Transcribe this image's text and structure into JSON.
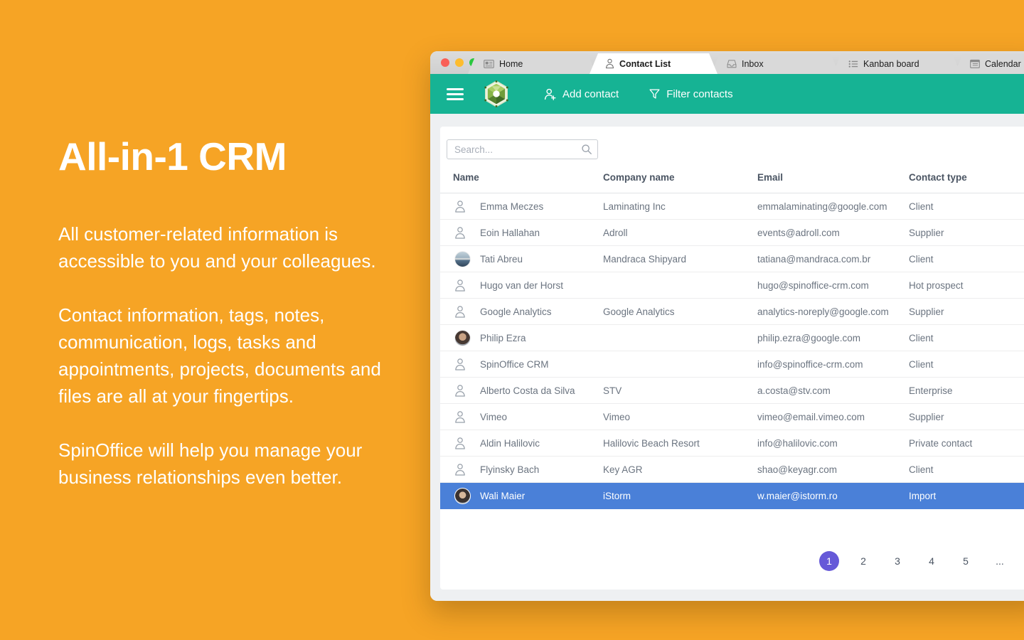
{
  "hero": {
    "title": "All-in-1 CRM",
    "paragraphs": [
      "All customer-related information is accessible to you and your colleagues.",
      "Contact information, tags, notes, communication, logs, tasks and appointments, projects, documents and files are all at your fingertips.",
      "SpinOffice will help you manage your business relationships even better."
    ]
  },
  "colors": {
    "background_orange": "#f6a425",
    "toolbar_teal": "#16b394",
    "selected_row_blue": "#4a80d8",
    "pagination_active_purple": "#6659d8",
    "traffic_red": "#f95f57",
    "traffic_yellow": "#fdbc2e",
    "traffic_green": "#2ac73f"
  },
  "window": {
    "tabs": [
      {
        "label": "Home",
        "icon": "article-icon",
        "active": false
      },
      {
        "label": "Contact List",
        "icon": "person-icon",
        "active": true
      },
      {
        "label": "Inbox",
        "icon": "inbox-icon",
        "active": false
      },
      {
        "label": "Kanban board",
        "icon": "kanban-list-icon",
        "active": false
      },
      {
        "label": "Calendar",
        "icon": "calendar-icon",
        "active": false
      }
    ],
    "toolbar": {
      "add_contact_label": "Add contact",
      "filter_label": "Filter contacts"
    },
    "search": {
      "placeholder": "Search..."
    },
    "table": {
      "columns": [
        "Name",
        "Company name",
        "Email",
        "Contact type"
      ],
      "rows": [
        {
          "avatar": "person-icon",
          "name": "Emma Meczes",
          "company": "Laminating Inc",
          "email": "emmalaminating@google.com",
          "type": "Client",
          "selected": false
        },
        {
          "avatar": "person-icon",
          "name": "Eoin Hallahan",
          "company": "Adroll",
          "email": "events@adroll.com",
          "type": "Supplier",
          "selected": false
        },
        {
          "avatar": "photo-ship",
          "name": "Tati Abreu",
          "company": "Mandraca Shipyard",
          "email": "tatiana@mandraca.com.br",
          "type": "Client",
          "selected": false
        },
        {
          "avatar": "person-icon",
          "name": "Hugo van der Horst",
          "company": "",
          "email": "hugo@spinoffice-crm.com",
          "type": "Hot prospect",
          "selected": false
        },
        {
          "avatar": "person-icon",
          "name": "Google Analytics",
          "company": "Google Analytics",
          "email": "analytics-noreply@google.com",
          "type": "Supplier",
          "selected": false
        },
        {
          "avatar": "photo-portrait-1",
          "name": "Philip Ezra",
          "company": "",
          "email": "philip.ezra@google.com",
          "type": "Client",
          "selected": false
        },
        {
          "avatar": "person-icon",
          "name": "SpinOffice CRM",
          "company": "",
          "email": "info@spinoffice-crm.com",
          "type": "Client",
          "selected": false
        },
        {
          "avatar": "person-icon",
          "name": "Alberto Costa da Silva",
          "company": "STV",
          "email": "a.costa@stv.com",
          "type": "Enterprise",
          "selected": false
        },
        {
          "avatar": "person-icon",
          "name": "Vimeo",
          "company": "Vimeo",
          "email": "vimeo@email.vimeo.com",
          "type": "Supplier",
          "selected": false
        },
        {
          "avatar": "person-icon",
          "name": "Aldin Halilovic",
          "company": "Halilovic Beach Resort",
          "email": "info@halilovic.com",
          "type": "Private contact",
          "selected": false
        },
        {
          "avatar": "person-icon",
          "name": "Flyinsky Bach",
          "company": "Key AGR",
          "email": "shao@keyagr.com",
          "type": "Client",
          "selected": false
        },
        {
          "avatar": "photo-portrait-2",
          "name": "Wali Maier",
          "company": "iStorm",
          "email": "w.maier@istorm.ro",
          "type": "Import",
          "selected": true
        }
      ]
    },
    "pagination": {
      "pages": [
        {
          "label": "1",
          "active": true
        },
        {
          "label": "2",
          "active": false
        },
        {
          "label": "3",
          "active": false
        },
        {
          "label": "4",
          "active": false
        },
        {
          "label": "5",
          "active": false
        },
        {
          "label": "...",
          "active": false
        }
      ]
    }
  }
}
